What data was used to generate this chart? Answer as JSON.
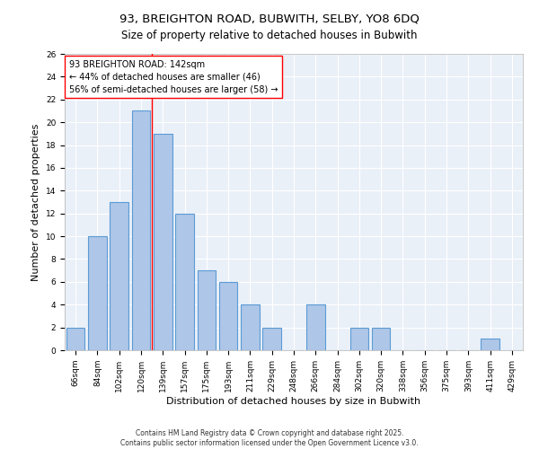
{
  "title1": "93, BREIGHTON ROAD, BUBWITH, SELBY, YO8 6DQ",
  "title2": "Size of property relative to detached houses in Bubwith",
  "xlabel": "Distribution of detached houses by size in Bubwith",
  "ylabel": "Number of detached properties",
  "categories": [
    "66sqm",
    "84sqm",
    "102sqm",
    "120sqm",
    "139sqm",
    "157sqm",
    "175sqm",
    "193sqm",
    "211sqm",
    "229sqm",
    "248sqm",
    "266sqm",
    "284sqm",
    "302sqm",
    "320sqm",
    "338sqm",
    "356sqm",
    "375sqm",
    "393sqm",
    "411sqm",
    "429sqm"
  ],
  "values": [
    2,
    10,
    13,
    21,
    19,
    12,
    7,
    6,
    4,
    2,
    0,
    4,
    0,
    2,
    2,
    0,
    0,
    0,
    0,
    1,
    0
  ],
  "bar_color": "#aec6e8",
  "bar_edge_color": "#5b9bd5",
  "bar_linewidth": 0.8,
  "vline_x_index": 4,
  "vline_color": "red",
  "vline_linewidth": 1.0,
  "annotation_text": "93 BREIGHTON ROAD: 142sqm\n← 44% of detached houses are smaller (46)\n56% of semi-detached houses are larger (58) →",
  "annotation_box_color": "white",
  "annotation_box_edge_color": "red",
  "ylim": [
    0,
    26
  ],
  "yticks": [
    0,
    2,
    4,
    6,
    8,
    10,
    12,
    14,
    16,
    18,
    20,
    22,
    24,
    26
  ],
  "background_color": "#eaf0f8",
  "grid_color": "white",
  "footer": "Contains HM Land Registry data © Crown copyright and database right 2025.\nContains public sector information licensed under the Open Government Licence v3.0.",
  "title1_fontsize": 9.5,
  "title2_fontsize": 8.5,
  "axis_label_fontsize": 8,
  "tick_fontsize": 6.5,
  "annotation_fontsize": 7,
  "footer_fontsize": 5.5
}
